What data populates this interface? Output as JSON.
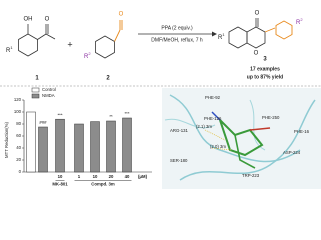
{
  "scheme": {
    "reactant_1": {
      "label": "1",
      "substituent": "R",
      "substituent_index": "1",
      "atoms": [
        "OH",
        "O"
      ]
    },
    "plus": "+",
    "reactant_2": {
      "label": "2",
      "substituent": "R",
      "substituent_index": "2",
      "atoms": [
        "O"
      ]
    },
    "conditions": [
      "PPA (2 equiv.)",
      "DMF/MeOH, reflux, 7 h"
    ],
    "product": {
      "label": "3",
      "substituents": [
        {
          "text": "R",
          "index": "1"
        },
        {
          "text": "R",
          "index": "2"
        }
      ],
      "atoms": [
        "O",
        "O"
      ]
    },
    "summary": [
      "17 examples",
      "up to 87% yield"
    ]
  },
  "chart_data": {
    "type": "bar",
    "y_label": "MTT Reduction(%)",
    "categories": [
      null,
      null,
      "10",
      "1",
      "10",
      "20",
      "40"
    ],
    "values": [
      100,
      75,
      88,
      80,
      84,
      85,
      90
    ],
    "colors": [
      "#ffffff",
      "#8c8c8c",
      "#8c8c8c",
      "#8c8c8c",
      "#8c8c8c",
      "#8c8c8c",
      "#8c8c8c"
    ],
    "annotations": [
      null,
      "###",
      "***",
      null,
      null,
      "**",
      "***"
    ],
    "groups": [
      {
        "label": "MK-801",
        "members": [
          2
        ]
      },
      {
        "label": "Compd. 3m",
        "members": [
          3,
          4,
          5,
          6
        ]
      }
    ],
    "unit": "(μM)",
    "legend": [
      {
        "label": "Control",
        "color": "#ffffff"
      },
      {
        "label": "NMDA",
        "color": "#8c8c8c"
      }
    ],
    "ylim": [
      0,
      120
    ],
    "yticks": [
      0,
      20,
      40,
      60,
      80,
      100,
      120
    ]
  },
  "docking": {
    "labels": [
      "PHE-92",
      "PHE-250",
      "PHE-16",
      "PHE-126",
      "(2.1) 3m",
      "ARG-131",
      "(2.0) 3m",
      "ASP-224",
      "SER-180",
      "TRP-223"
    ]
  }
}
